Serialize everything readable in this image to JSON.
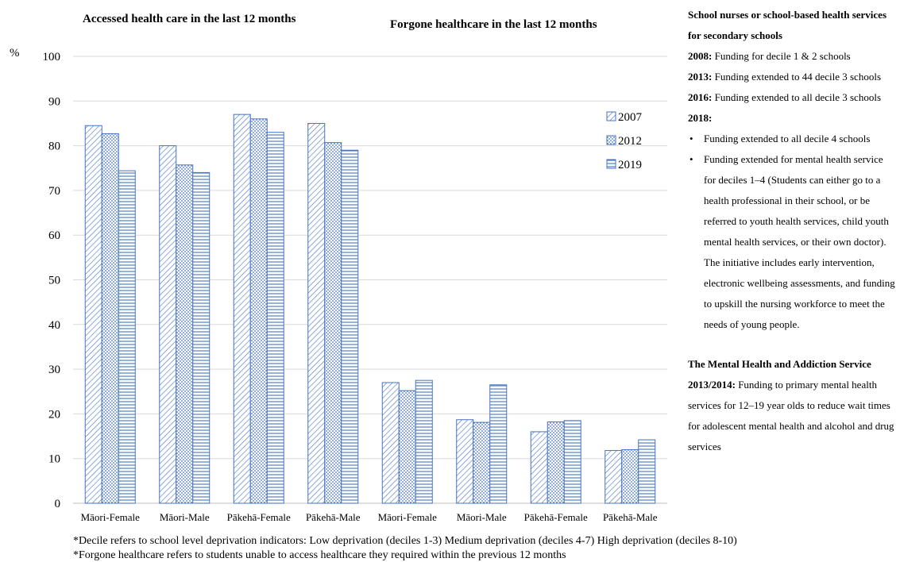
{
  "chart_data": {
    "type": "bar",
    "titles": [
      "Accessed health care in the last 12 months",
      "Forgone healthcare in the last 12 months"
    ],
    "ylabel": "%",
    "ylim": [
      0,
      100
    ],
    "yticks": [
      0,
      10,
      20,
      30,
      40,
      50,
      60,
      70,
      80,
      90,
      100
    ],
    "grid": true,
    "legend_position": "right-inside",
    "categories": [
      "Māori-Female",
      "Māori-Male",
      "Pākehā-Female",
      "Pākehā-Male",
      "Māori-Female",
      "Māori-Male",
      "Pākehā-Female",
      "Pākehā-Male"
    ],
    "series": [
      {
        "name": "2007",
        "pattern": "diagonal",
        "color": "#4472c4",
        "values": [
          84.5,
          80,
          87,
          85,
          27,
          18.7,
          16,
          11.8
        ]
      },
      {
        "name": "2012",
        "pattern": "dots",
        "color": "#4472c4",
        "values": [
          82.7,
          75.7,
          86,
          80.7,
          25.2,
          18.1,
          18.2,
          12
        ]
      },
      {
        "name": "2019",
        "pattern": "horizontal",
        "color": "#4472c4",
        "values": [
          74.4,
          74,
          83,
          79,
          27.5,
          26.5,
          18.5,
          14.2
        ]
      }
    ]
  },
  "side": {
    "heading": "School nurses or school-based health services for secondary schools",
    "y2008_label": "2008:",
    "y2008_text": "Funding for decile 1 & 2 schools",
    "y2013_label": "2013:",
    "y2013_text": "Funding extended to 44 decile 3 schools",
    "y2016_label": "2016:",
    "y2016_text": "Funding extended to all decile 3 schools",
    "y2018_label": "2018:",
    "bullet1": "Funding extended to all decile 4 schools",
    "bullet2": "Funding extended for mental health service for deciles 1–4 (Students can either go to a health professional in their school, or be referred to youth health services, child youth mental health services, or their own doctor). The initiative includes early intervention, electronic wellbeing assessments, and funding to upskill the nursing workforce to meet the needs of young people.",
    "mh_heading": "The Mental Health and Addiction Service",
    "mh_label": "2013/2014:",
    "mh_text": "Funding to primary mental health services for 12–19 year olds to reduce wait times for adolescent mental health and alcohol and drug services"
  },
  "footnotes": [
    "*Decile refers to school level deprivation indicators: Low deprivation (deciles 1-3) Medium deprivation (deciles 4-7) High deprivation (deciles 8-10)",
    "*Forgone healthcare refers to students unable to access healthcare they required within the previous 12 months"
  ]
}
